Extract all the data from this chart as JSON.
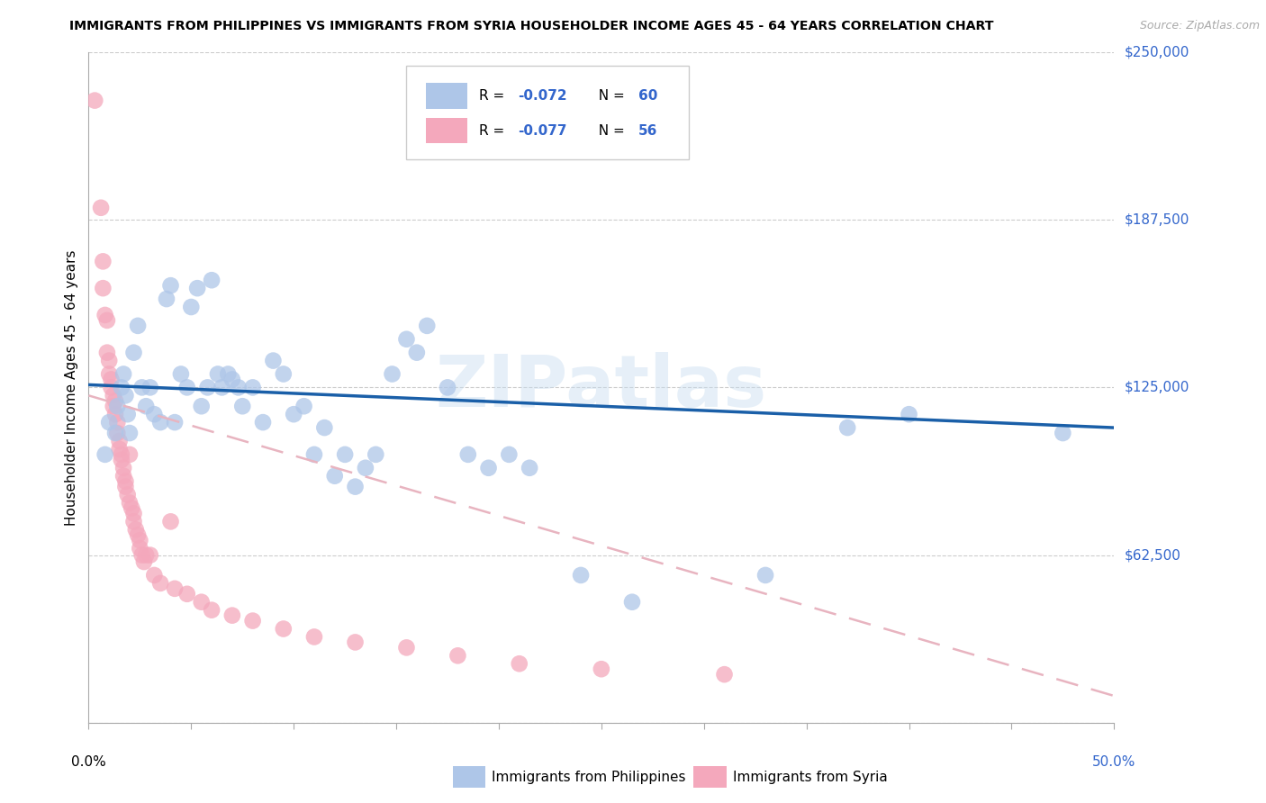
{
  "title": "IMMIGRANTS FROM PHILIPPINES VS IMMIGRANTS FROM SYRIA HOUSEHOLDER INCOME AGES 45 - 64 YEARS CORRELATION CHART",
  "source": "Source: ZipAtlas.com",
  "ylabel_label": "Householder Income Ages 45 - 64 years",
  "xlim": [
    0.0,
    0.5
  ],
  "ylim": [
    0,
    250000
  ],
  "yticks": [
    0,
    62500,
    125000,
    187500,
    250000
  ],
  "ytick_labels": [
    "",
    "$62,500",
    "$125,000",
    "$187,500",
    "$250,000"
  ],
  "philippines_color": "#aec6e8",
  "syria_color": "#f4a8bc",
  "philippines_line_color": "#1a5fa8",
  "syria_line_color": "#e8b4c0",
  "r_philippines": -0.072,
  "n_philippines": 60,
  "r_syria": -0.077,
  "n_syria": 56,
  "philippines_data": [
    [
      0.008,
      100000
    ],
    [
      0.01,
      112000
    ],
    [
      0.013,
      108000
    ],
    [
      0.014,
      118000
    ],
    [
      0.016,
      125000
    ],
    [
      0.017,
      130000
    ],
    [
      0.018,
      122000
    ],
    [
      0.019,
      115000
    ],
    [
      0.02,
      108000
    ],
    [
      0.022,
      138000
    ],
    [
      0.024,
      148000
    ],
    [
      0.026,
      125000
    ],
    [
      0.028,
      118000
    ],
    [
      0.03,
      125000
    ],
    [
      0.032,
      115000
    ],
    [
      0.035,
      112000
    ],
    [
      0.038,
      158000
    ],
    [
      0.04,
      163000
    ],
    [
      0.042,
      112000
    ],
    [
      0.045,
      130000
    ],
    [
      0.048,
      125000
    ],
    [
      0.05,
      155000
    ],
    [
      0.053,
      162000
    ],
    [
      0.055,
      118000
    ],
    [
      0.058,
      125000
    ],
    [
      0.06,
      165000
    ],
    [
      0.063,
      130000
    ],
    [
      0.065,
      125000
    ],
    [
      0.068,
      130000
    ],
    [
      0.07,
      128000
    ],
    [
      0.073,
      125000
    ],
    [
      0.075,
      118000
    ],
    [
      0.08,
      125000
    ],
    [
      0.085,
      112000
    ],
    [
      0.09,
      135000
    ],
    [
      0.095,
      130000
    ],
    [
      0.1,
      115000
    ],
    [
      0.105,
      118000
    ],
    [
      0.11,
      100000
    ],
    [
      0.115,
      110000
    ],
    [
      0.12,
      92000
    ],
    [
      0.125,
      100000
    ],
    [
      0.13,
      88000
    ],
    [
      0.135,
      95000
    ],
    [
      0.14,
      100000
    ],
    [
      0.148,
      130000
    ],
    [
      0.155,
      143000
    ],
    [
      0.16,
      138000
    ],
    [
      0.165,
      148000
    ],
    [
      0.175,
      125000
    ],
    [
      0.185,
      100000
    ],
    [
      0.195,
      95000
    ],
    [
      0.205,
      100000
    ],
    [
      0.215,
      95000
    ],
    [
      0.24,
      55000
    ],
    [
      0.265,
      45000
    ],
    [
      0.33,
      55000
    ],
    [
      0.37,
      110000
    ],
    [
      0.4,
      115000
    ],
    [
      0.475,
      108000
    ]
  ],
  "syria_data": [
    [
      0.003,
      232000
    ],
    [
      0.006,
      192000
    ],
    [
      0.007,
      172000
    ],
    [
      0.007,
      162000
    ],
    [
      0.008,
      152000
    ],
    [
      0.009,
      150000
    ],
    [
      0.009,
      138000
    ],
    [
      0.01,
      135000
    ],
    [
      0.01,
      130000
    ],
    [
      0.011,
      128000
    ],
    [
      0.011,
      125000
    ],
    [
      0.012,
      122000
    ],
    [
      0.012,
      118000
    ],
    [
      0.013,
      120000
    ],
    [
      0.013,
      115000
    ],
    [
      0.014,
      112000
    ],
    [
      0.014,
      108000
    ],
    [
      0.015,
      105000
    ],
    [
      0.015,
      102000
    ],
    [
      0.016,
      100000
    ],
    [
      0.016,
      98000
    ],
    [
      0.017,
      95000
    ],
    [
      0.017,
      92000
    ],
    [
      0.018,
      90000
    ],
    [
      0.018,
      88000
    ],
    [
      0.019,
      85000
    ],
    [
      0.02,
      100000
    ],
    [
      0.02,
      82000
    ],
    [
      0.021,
      80000
    ],
    [
      0.022,
      78000
    ],
    [
      0.022,
      75000
    ],
    [
      0.023,
      72000
    ],
    [
      0.024,
      70000
    ],
    [
      0.025,
      68000
    ],
    [
      0.025,
      65000
    ],
    [
      0.026,
      62500
    ],
    [
      0.027,
      60000
    ],
    [
      0.028,
      62500
    ],
    [
      0.03,
      62500
    ],
    [
      0.032,
      55000
    ],
    [
      0.035,
      52000
    ],
    [
      0.04,
      75000
    ],
    [
      0.042,
      50000
    ],
    [
      0.048,
      48000
    ],
    [
      0.055,
      45000
    ],
    [
      0.06,
      42000
    ],
    [
      0.07,
      40000
    ],
    [
      0.08,
      38000
    ],
    [
      0.095,
      35000
    ],
    [
      0.11,
      32000
    ],
    [
      0.13,
      30000
    ],
    [
      0.155,
      28000
    ],
    [
      0.18,
      25000
    ],
    [
      0.21,
      22000
    ],
    [
      0.25,
      20000
    ],
    [
      0.31,
      18000
    ]
  ],
  "phil_line_x0": 0.0,
  "phil_line_x1": 0.5,
  "phil_line_y0": 126000,
  "phil_line_y1": 110000,
  "syria_line_x0": 0.0,
  "syria_line_x1": 0.5,
  "syria_line_y0": 122000,
  "syria_line_y1": 10000
}
